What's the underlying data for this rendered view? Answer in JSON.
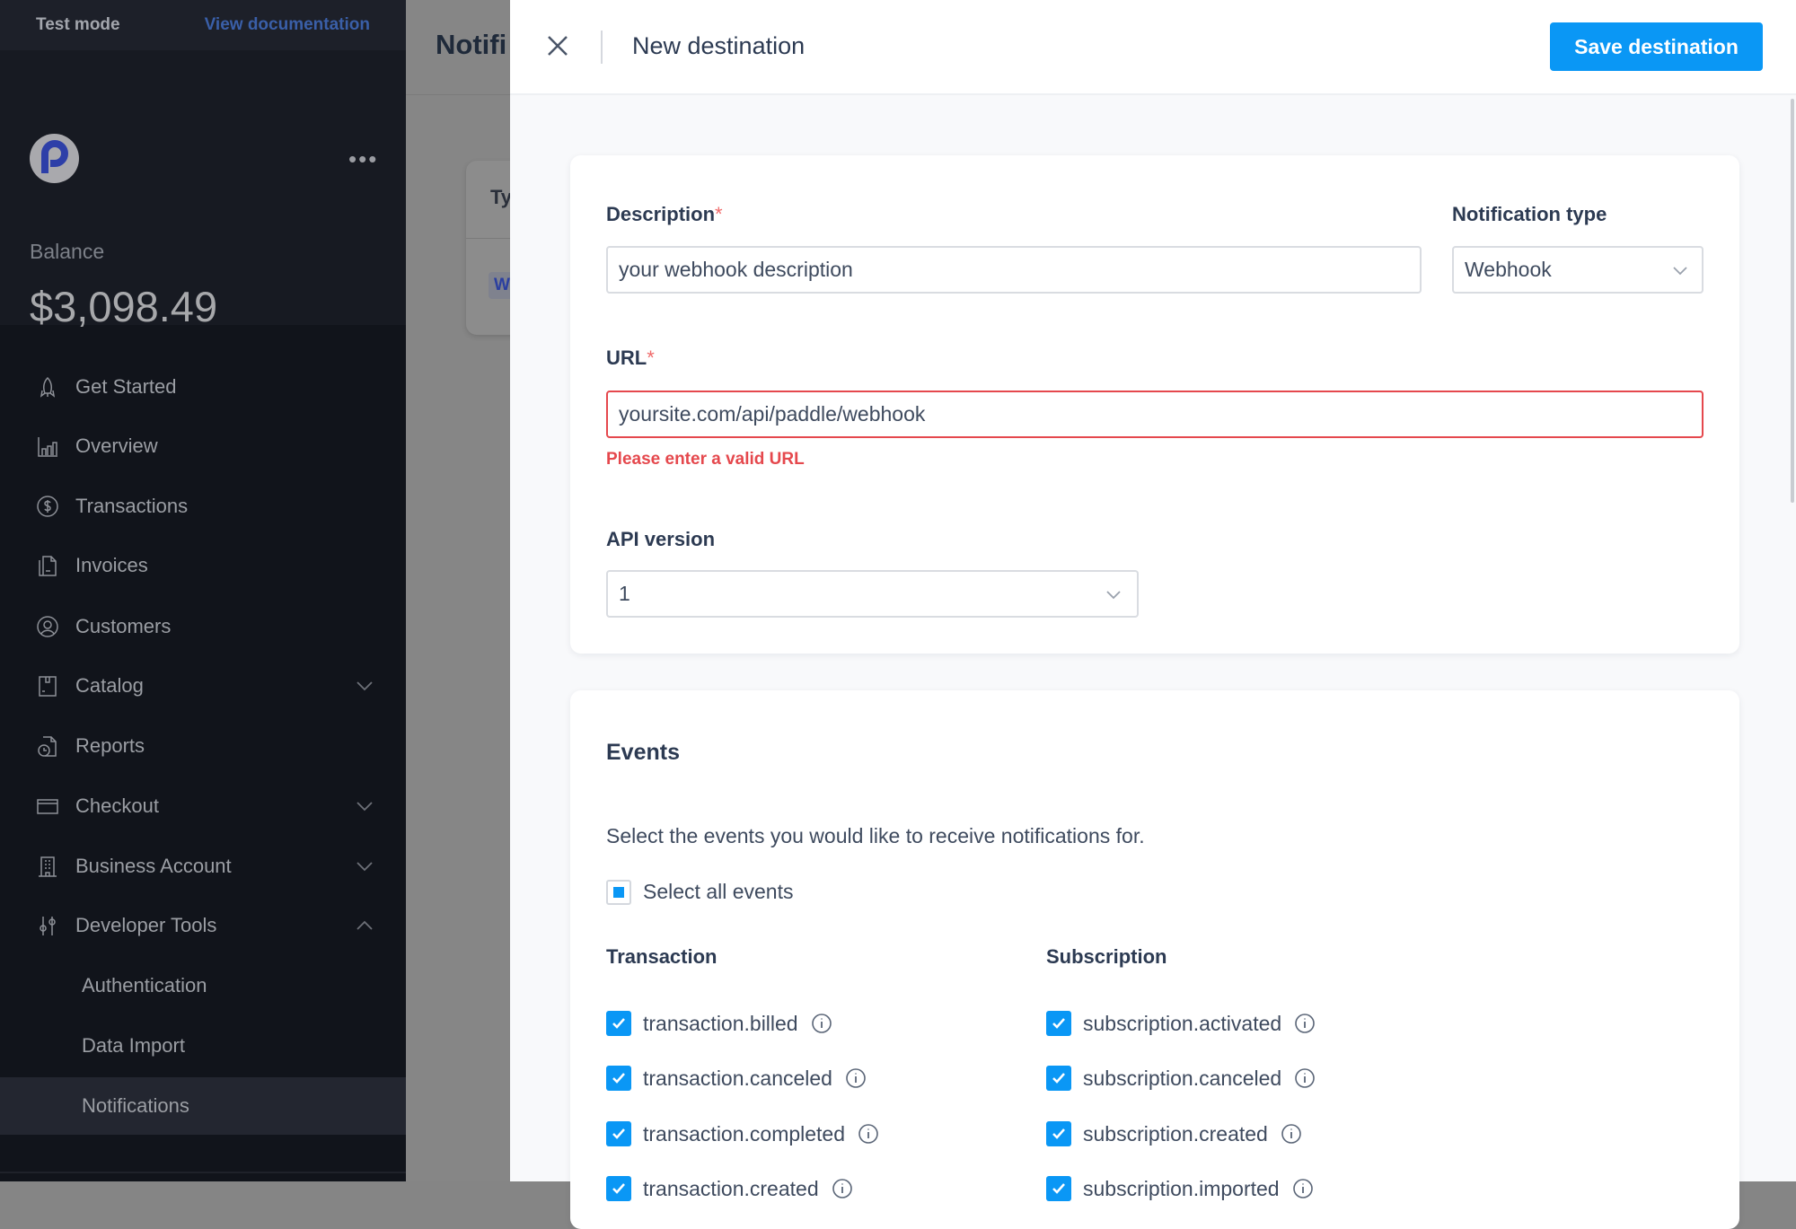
{
  "topbar": {
    "test_mode": "Test mode",
    "view_docs": "View documentation"
  },
  "account": {
    "menu_icon": "more-dots-icon",
    "balance_label": "Balance",
    "balance_amount": "$3,098.49"
  },
  "nav": [
    {
      "label": "Get Started",
      "icon": "rocket-icon"
    },
    {
      "label": "Overview",
      "icon": "bar-chart-icon"
    },
    {
      "label": "Transactions",
      "icon": "dollar-circle-icon"
    },
    {
      "label": "Invoices",
      "icon": "invoice-icon"
    },
    {
      "label": "Customers",
      "icon": "user-circle-icon"
    },
    {
      "label": "Catalog",
      "icon": "catalog-icon",
      "expand": "down"
    },
    {
      "label": "Reports",
      "icon": "report-icon"
    },
    {
      "label": "Checkout",
      "icon": "card-icon",
      "expand": "down"
    },
    {
      "label": "Business Account",
      "icon": "building-icon",
      "expand": "down"
    },
    {
      "label": "Developer Tools",
      "icon": "sliders-icon",
      "expand": "up"
    },
    {
      "label": "Authentication",
      "sub": true
    },
    {
      "label": "Data Import",
      "sub": true
    },
    {
      "label": "Notifications",
      "sub": true,
      "active": true
    }
  ],
  "background_page": {
    "title": "Notifi",
    "col_header": "Ty",
    "badge": "W"
  },
  "panel": {
    "title": "New destination",
    "save_label": "Save destination",
    "form": {
      "description_label": "Description",
      "description_value": "your webhook description",
      "notification_type_label": "Notification type",
      "notification_type_value": "Webhook",
      "url_label": "URL",
      "url_value": "yoursite.com/api/paddle/webhook",
      "url_error": "Please enter a valid URL",
      "api_version_label": "API version",
      "api_version_value": "1",
      "required_mark": "*"
    },
    "events": {
      "title": "Events",
      "description": "Select the events you would like to receive notifications for.",
      "select_all": "Select all events",
      "select_all_state": "indeterminate",
      "groups": [
        {
          "title": "Transaction",
          "items": [
            {
              "label": "transaction.billed",
              "checked": true
            },
            {
              "label": "transaction.canceled",
              "checked": true
            },
            {
              "label": "transaction.completed",
              "checked": true
            },
            {
              "label": "transaction.created",
              "checked": true
            }
          ]
        },
        {
          "title": "Subscription",
          "items": [
            {
              "label": "subscription.activated",
              "checked": true
            },
            {
              "label": "subscription.canceled",
              "checked": true
            },
            {
              "label": "subscription.created",
              "checked": true
            },
            {
              "label": "subscription.imported",
              "checked": true
            }
          ]
        }
      ]
    }
  },
  "colors": {
    "accent": "#0a97f5",
    "error": "#e5484d",
    "sidebar": "#11141b",
    "text": "#2c3a52"
  }
}
